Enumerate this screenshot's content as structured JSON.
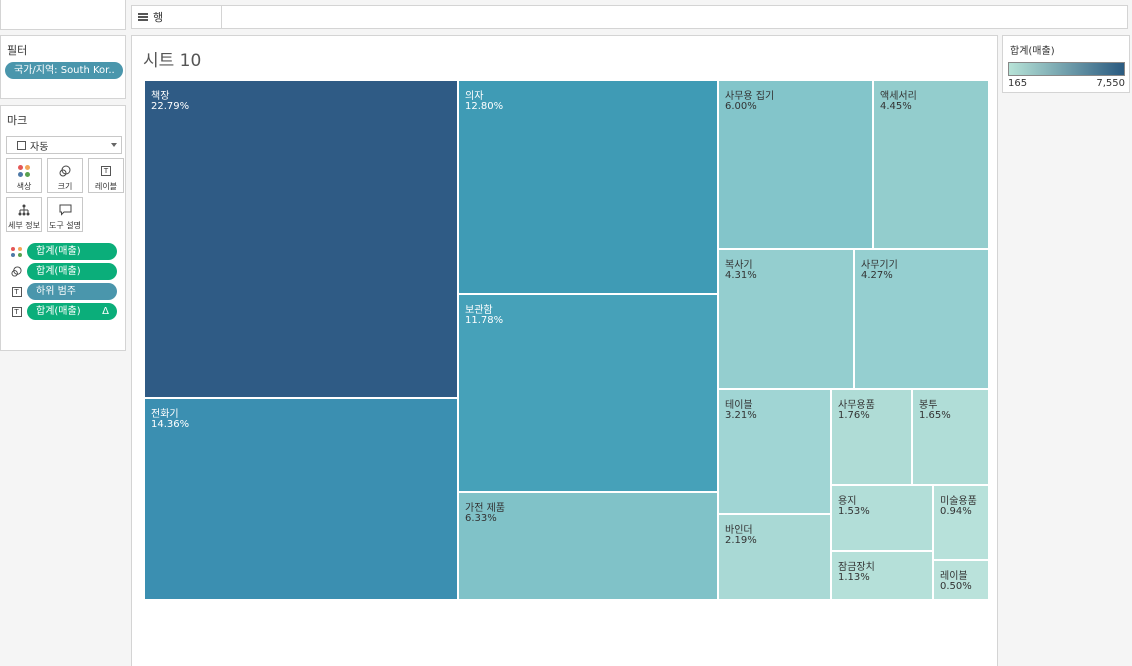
{
  "rows_shelf": {
    "label": "행"
  },
  "filters": {
    "title": "필터",
    "items": [
      "국가/지역: South Kor.."
    ]
  },
  "marks": {
    "title": "마크",
    "mark_type": "자동",
    "buttons": {
      "color": "색상",
      "size": "크기",
      "label": "레이블",
      "detail": "세부 정보",
      "tooltip": "도구 설명"
    },
    "fields": [
      {
        "icon": "color-dots-icon",
        "label": "합계(매출)",
        "style": "green"
      },
      {
        "icon": "size-icon",
        "label": "합계(매출)",
        "style": "green"
      },
      {
        "icon": "text-icon",
        "label": "하위 범주",
        "style": "blue"
      },
      {
        "icon": "text-icon",
        "label": "합계(매출)",
        "style": "green",
        "suffix": "Δ"
      }
    ]
  },
  "sheet": {
    "title": "시트 10"
  },
  "legend": {
    "title": "합계(매출)",
    "min_label": "165",
    "max_label": "7,550",
    "color_low": "#b7e3d7",
    "color_high": "#2a5a80"
  },
  "chart_data": {
    "type": "treemap",
    "title": "시트 10",
    "color_measure": "합계(매출)",
    "color_range": [
      165,
      7550
    ],
    "items": [
      {
        "name": "책장",
        "percent": "22.79%",
        "value": 22.79,
        "color": "#2f5b85",
        "text_color": "#ffffff"
      },
      {
        "name": "전화기",
        "percent": "14.36%",
        "value": 14.36,
        "color": "#3b8fb1",
        "text_color": "#ffffff"
      },
      {
        "name": "의자",
        "percent": "12.80%",
        "value": 12.8,
        "color": "#3f9bb5",
        "text_color": "#ffffff"
      },
      {
        "name": "보관함",
        "percent": "11.78%",
        "value": 11.78,
        "color": "#46a1b9",
        "text_color": "#ffffff"
      },
      {
        "name": "가전 제품",
        "percent": "6.33%",
        "value": 6.33,
        "color": "#80c2c8",
        "text_color": "#333333"
      },
      {
        "name": "사무용 집기",
        "percent": "6.00%",
        "value": 6.0,
        "color": "#83c5ca",
        "text_color": "#333333"
      },
      {
        "name": "액세서리",
        "percent": "4.45%",
        "value": 4.45,
        "color": "#93cdcd",
        "text_color": "#333333"
      },
      {
        "name": "복사기",
        "percent": "4.31%",
        "value": 4.31,
        "color": "#94cecf",
        "text_color": "#333333"
      },
      {
        "name": "사무기기",
        "percent": "4.27%",
        "value": 4.27,
        "color": "#95cfd0",
        "text_color": "#333333"
      },
      {
        "name": "테이블",
        "percent": "3.21%",
        "value": 3.21,
        "color": "#a0d5d4",
        "text_color": "#333333"
      },
      {
        "name": "바인더",
        "percent": "2.19%",
        "value": 2.19,
        "color": "#a9d9d5",
        "text_color": "#333333"
      },
      {
        "name": "사무용품",
        "percent": "1.76%",
        "value": 1.76,
        "color": "#afdcd6",
        "text_color": "#333333"
      },
      {
        "name": "봉투",
        "percent": "1.65%",
        "value": 1.65,
        "color": "#b0ddd7",
        "text_color": "#333333"
      },
      {
        "name": "용지",
        "percent": "1.53%",
        "value": 1.53,
        "color": "#b2ded8",
        "text_color": "#333333"
      },
      {
        "name": "잠금장치",
        "percent": "1.13%",
        "value": 1.13,
        "color": "#b5e0d9",
        "text_color": "#333333"
      },
      {
        "name": "미술용품",
        "percent": "0.94%",
        "value": 0.94,
        "color": "#b7e1da",
        "text_color": "#333333"
      },
      {
        "name": "레이블",
        "percent": "0.50%",
        "value": 0.5,
        "color": "#bae2db",
        "text_color": "#333333"
      }
    ]
  }
}
